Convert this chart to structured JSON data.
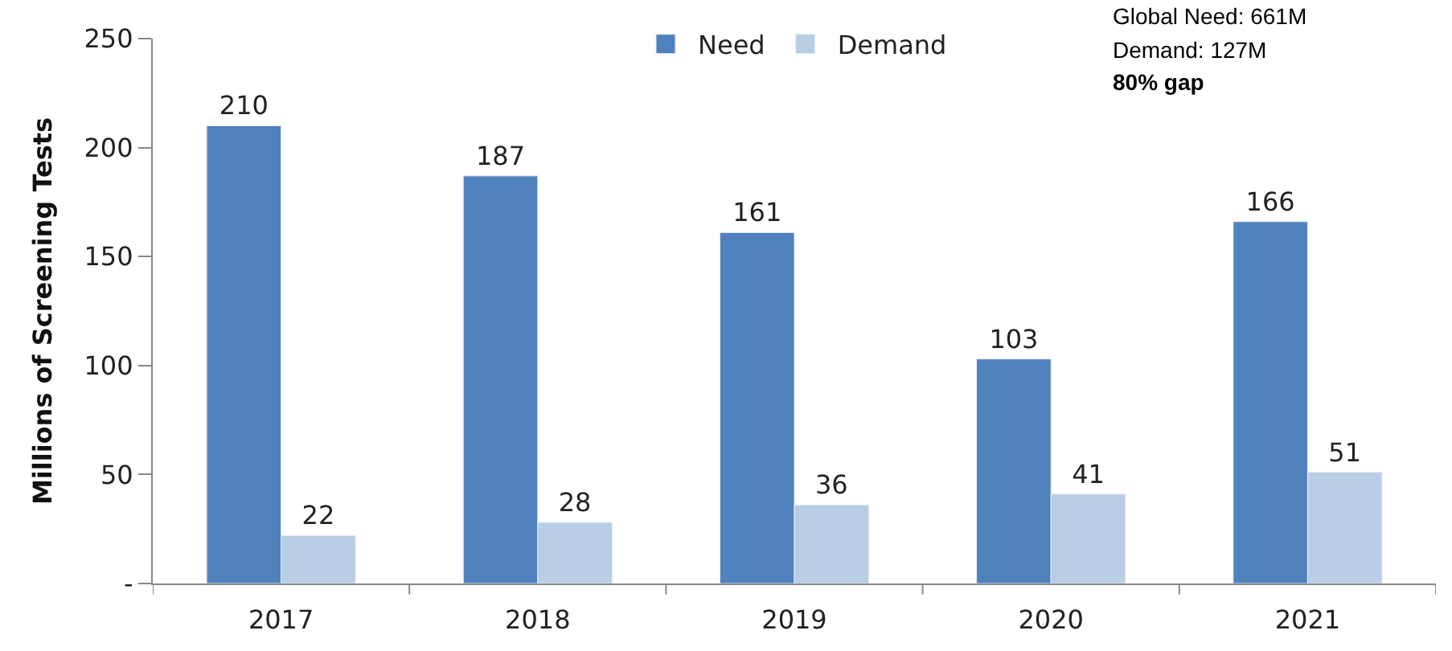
{
  "chart_data": {
    "type": "bar",
    "ylabel": "Millions of Screening Tests",
    "categories": [
      "2017",
      "2018",
      "2019",
      "2020",
      "2021"
    ],
    "series": [
      {
        "name": "Need",
        "color": "#4f81bd",
        "values": [
          210,
          187,
          161,
          103,
          166
        ]
      },
      {
        "name": "Demand",
        "color": "#b9cde5",
        "values": [
          22,
          28,
          36,
          41,
          51
        ]
      }
    ],
    "ylim": [
      0,
      250
    ],
    "yticks": [
      {
        "value": 0,
        "label": "-"
      },
      50,
      100,
      150,
      200,
      250
    ],
    "data_labels": true,
    "grid": false,
    "legend": "top",
    "annotations": [
      "Global Need: 661M",
      "Demand: 127M",
      "80% gap"
    ]
  }
}
